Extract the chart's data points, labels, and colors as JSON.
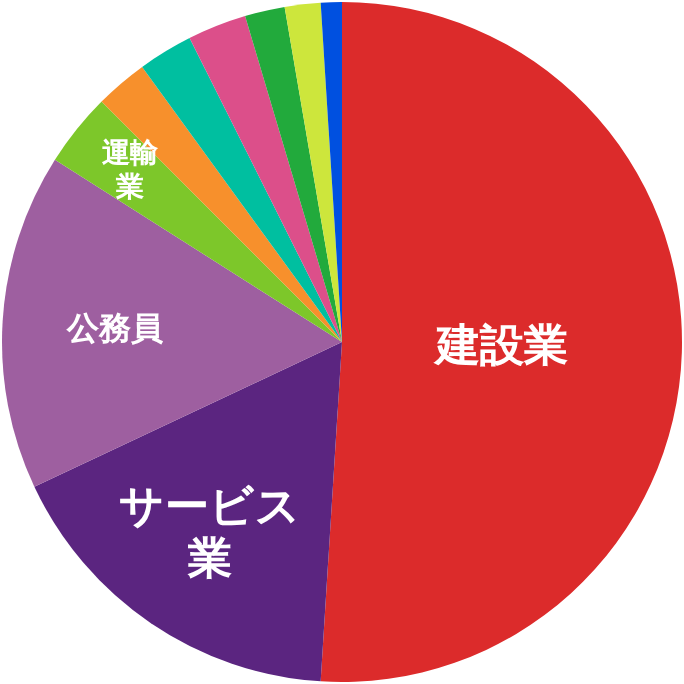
{
  "chart_data": {
    "type": "pie",
    "categories": [
      "建設業",
      "サービス業",
      "公務員",
      "運輸業",
      null,
      null,
      null,
      null,
      null,
      null
    ],
    "values": [
      51.0,
      17.0,
      16.0,
      3.5,
      2.5,
      2.6,
      2.8,
      1.9,
      1.7,
      1.0
    ],
    "colors": [
      "#dc2b2b",
      "#5b2580",
      "#9e5fa0",
      "#7dc72a",
      "#f7902c",
      "#00bfa0",
      "#dc4f8a",
      "#22aa3c",
      "#cde63c",
      "#0050e0"
    ]
  }
}
